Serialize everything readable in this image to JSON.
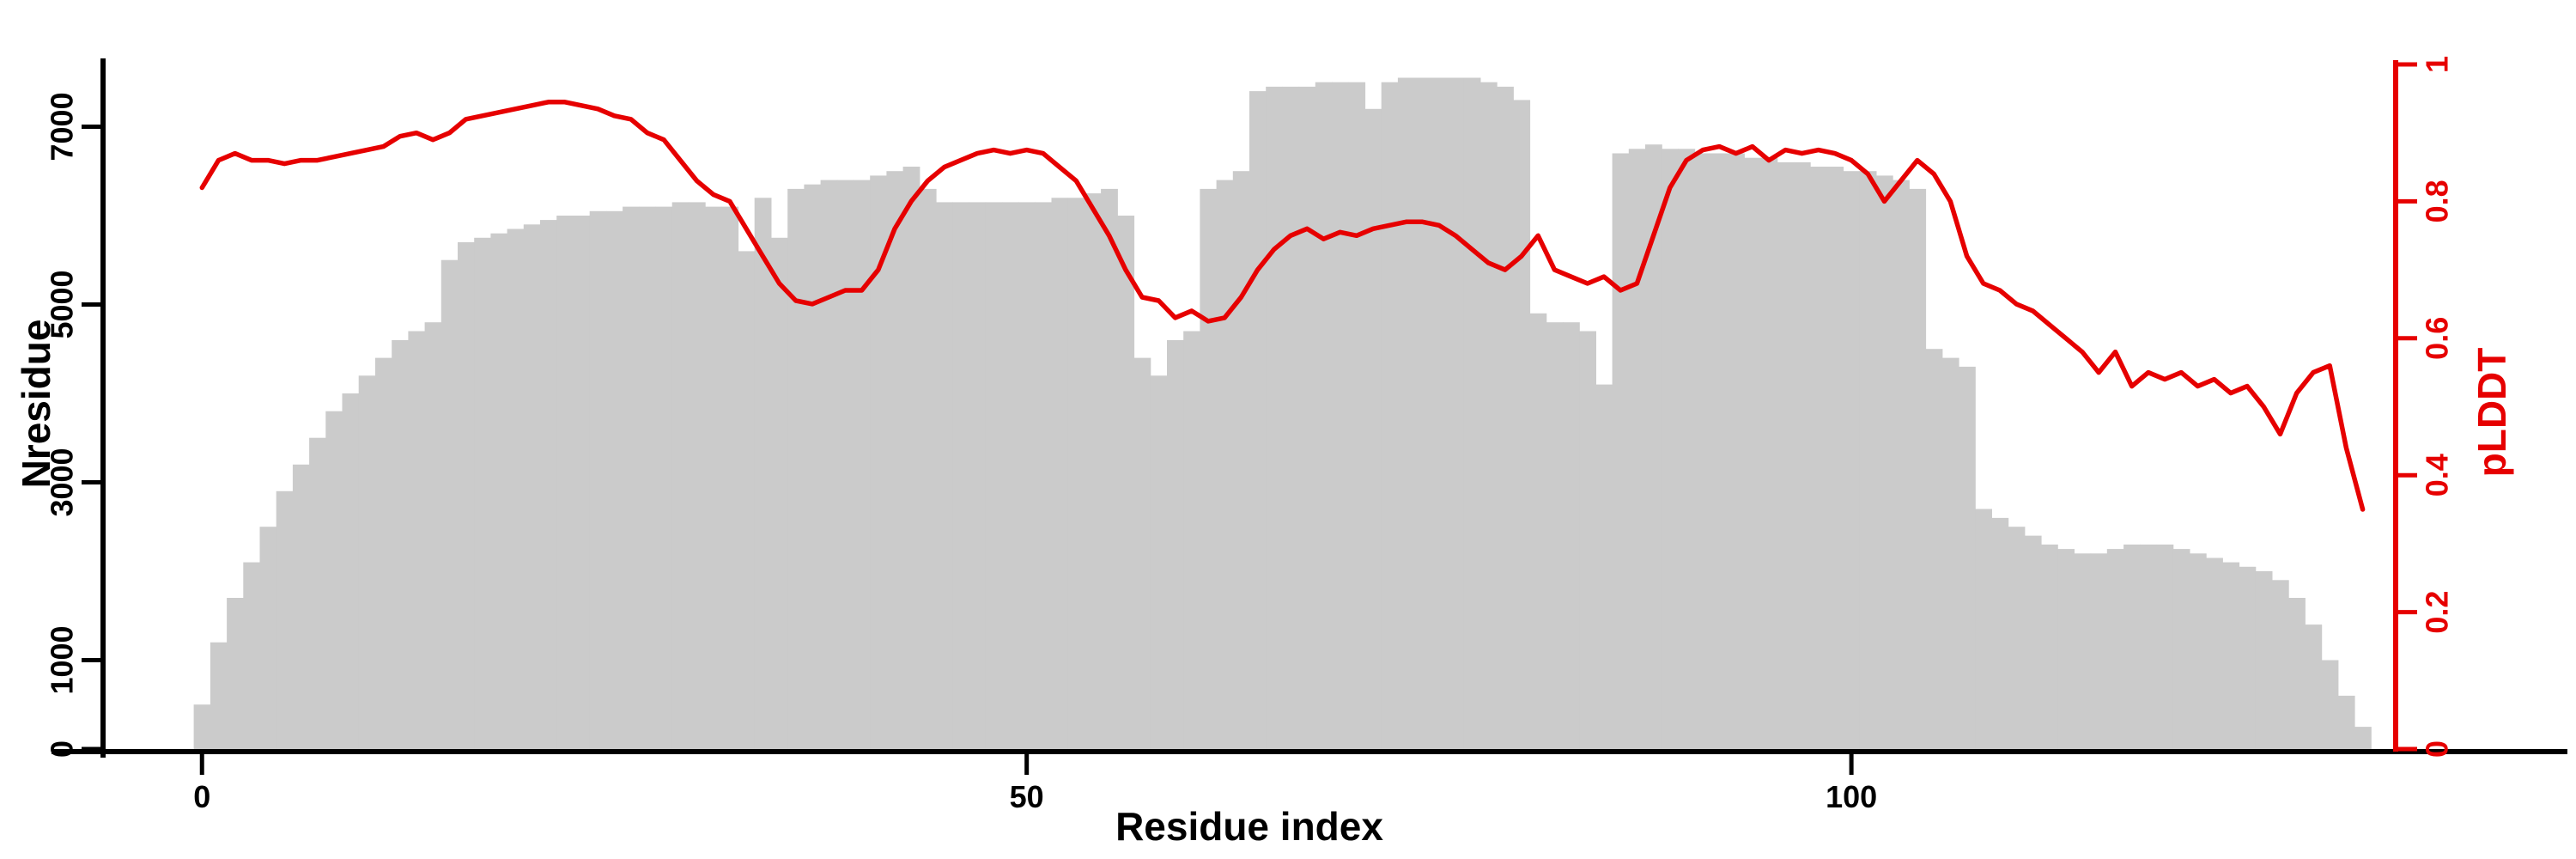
{
  "chart_data": {
    "type": "bar",
    "title": "",
    "xlabel": "Residue index",
    "ylabel_left": "Nresidue",
    "ylabel_right": "pLDDT",
    "grid": false,
    "legend": "none",
    "x": {
      "start": 0,
      "step": 1,
      "count": 132
    },
    "x_axis": {
      "ticks": [
        0,
        50,
        100
      ],
      "lim": [
        -6,
        133
      ]
    },
    "left_axis": {
      "ticks": [
        0,
        1000,
        3000,
        5000,
        7000
      ],
      "lim": [
        0,
        7700
      ],
      "color": "#000000"
    },
    "right_axis": {
      "ticks": [
        0,
        0.2,
        0.4,
        0.6,
        0.8,
        1
      ],
      "lim": [
        0,
        1
      ],
      "color": "#e60000"
    },
    "series": [
      {
        "name": "Nresidue",
        "type": "bar",
        "axis": "left",
        "color": "#cbcbcb",
        "values": [
          500,
          1200,
          1700,
          2100,
          2500,
          2900,
          3200,
          3500,
          3800,
          4000,
          4200,
          4400,
          4600,
          4700,
          4800,
          5500,
          5700,
          5750,
          5800,
          5850,
          5900,
          5950,
          6000,
          6000,
          6050,
          6050,
          6100,
          6100,
          6100,
          6150,
          6150,
          6100,
          6100,
          5600,
          6200,
          5750,
          6300,
          6350,
          6400,
          6400,
          6400,
          6450,
          6500,
          6550,
          6300,
          6150,
          6150,
          6150,
          6150,
          6150,
          6150,
          6150,
          6200,
          6200,
          6250,
          6300,
          6000,
          4400,
          4200,
          4600,
          4700,
          6300,
          6400,
          6500,
          7400,
          7450,
          7450,
          7450,
          7500,
          7500,
          7500,
          7200,
          7500,
          7550,
          7550,
          7550,
          7550,
          7550,
          7500,
          7450,
          7300,
          4900,
          4800,
          4800,
          4700,
          4100,
          6700,
          6750,
          6800,
          6750,
          6750,
          6700,
          6700,
          6700,
          6650,
          6650,
          6600,
          6600,
          6550,
          6550,
          6500,
          6500,
          6450,
          6400,
          6300,
          4500,
          4400,
          4300,
          2700,
          2600,
          2500,
          2400,
          2300,
          2250,
          2200,
          2200,
          2250,
          2300,
          2300,
          2300,
          2250,
          2200,
          2150,
          2100,
          2050,
          2000,
          1900,
          1700,
          1400,
          1000,
          600,
          250
        ]
      },
      {
        "name": "pLDDT",
        "type": "line",
        "axis": "right",
        "color": "#e60000",
        "values": [
          0.82,
          0.86,
          0.87,
          0.86,
          0.86,
          0.855,
          0.86,
          0.86,
          0.865,
          0.87,
          0.875,
          0.88,
          0.895,
          0.9,
          0.89,
          0.9,
          0.92,
          0.925,
          0.93,
          0.935,
          0.94,
          0.945,
          0.945,
          0.94,
          0.935,
          0.925,
          0.92,
          0.9,
          0.89,
          0.86,
          0.83,
          0.81,
          0.8,
          0.76,
          0.72,
          0.68,
          0.655,
          0.65,
          0.66,
          0.67,
          0.67,
          0.7,
          0.76,
          0.8,
          0.83,
          0.85,
          0.86,
          0.87,
          0.875,
          0.87,
          0.875,
          0.87,
          0.85,
          0.83,
          0.79,
          0.75,
          0.7,
          0.66,
          0.655,
          0.63,
          0.64,
          0.625,
          0.63,
          0.66,
          0.7,
          0.73,
          0.75,
          0.76,
          0.745,
          0.755,
          0.75,
          0.76,
          0.765,
          0.77,
          0.77,
          0.765,
          0.75,
          0.73,
          0.71,
          0.7,
          0.72,
          0.75,
          0.7,
          0.69,
          0.68,
          0.69,
          0.67,
          0.68,
          0.75,
          0.82,
          0.86,
          0.875,
          0.88,
          0.87,
          0.88,
          0.86,
          0.875,
          0.87,
          0.875,
          0.87,
          0.86,
          0.84,
          0.8,
          0.83,
          0.86,
          0.84,
          0.8,
          0.72,
          0.68,
          0.67,
          0.65,
          0.64,
          0.62,
          0.6,
          0.58,
          0.55,
          0.58,
          0.53,
          0.55,
          0.54,
          0.55,
          0.53,
          0.54,
          0.52,
          0.53,
          0.5,
          0.46,
          0.52,
          0.55,
          0.56,
          0.44,
          0.35
        ]
      }
    ]
  }
}
